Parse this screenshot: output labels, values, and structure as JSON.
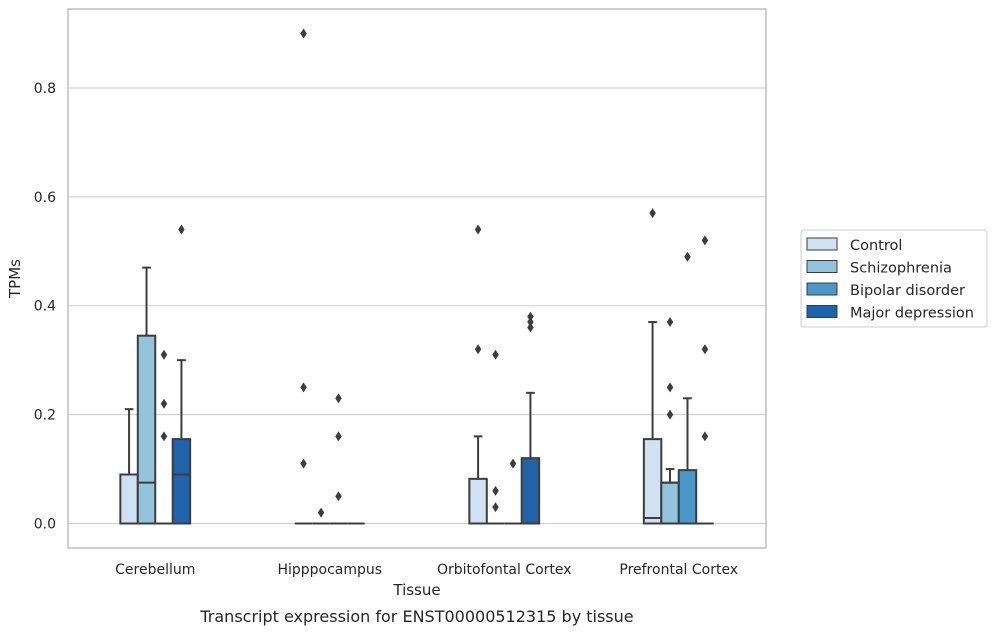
{
  "caption": "Transcript expression for ENST00000512315 by tissue",
  "colors": {
    "Control": "#cfe1f2",
    "Schizophrenia": "#93c4de",
    "Bipolar disorder": "#4a98c9",
    "Major depression": "#2163aa",
    "box_edge": "#3d3d3d",
    "grid": "#cccccc",
    "frame": "#bfbfbf"
  },
  "chart_data": {
    "type": "boxplot",
    "xlabel": "Tissue",
    "ylabel": "TPMs",
    "ylim": [
      -0.045,
      0.945
    ],
    "yticks": [
      0.0,
      0.2,
      0.4,
      0.6,
      0.8
    ],
    "ytick_labels": [
      "0.0",
      "0.2",
      "0.4",
      "0.6",
      "0.8"
    ],
    "grid": "horizontal",
    "legend_position": "right",
    "categories": [
      "Cerebellum",
      "Hipppocampus",
      "Orbitofontal Cortex",
      "Prefrontal Cortex"
    ],
    "series": [
      {
        "name": "Control",
        "boxes": [
          {
            "q1": 0.0,
            "median": 0.0,
            "q3": 0.09,
            "whisker_low": 0.0,
            "whisker_high": 0.21,
            "outliers": []
          },
          {
            "q1": 0.0,
            "median": 0.0,
            "q3": 0.0,
            "whisker_low": 0.0,
            "whisker_high": 0.0,
            "outliers": [
              0.11,
              0.25,
              0.9
            ]
          },
          {
            "q1": 0.0,
            "median": 0.0,
            "q3": 0.082,
            "whisker_low": 0.0,
            "whisker_high": 0.16,
            "outliers": [
              0.32,
              0.54
            ]
          },
          {
            "q1": 0.0,
            "median": 0.01,
            "q3": 0.155,
            "whisker_low": 0.0,
            "whisker_high": 0.37,
            "outliers": [
              0.57
            ]
          }
        ]
      },
      {
        "name": "Schizophrenia",
        "boxes": [
          {
            "q1": 0.0,
            "median": 0.075,
            "q3": 0.345,
            "whisker_low": 0.0,
            "whisker_high": 0.47,
            "outliers": []
          },
          {
            "q1": 0.0,
            "median": 0.0,
            "q3": 0.0,
            "whisker_low": 0.0,
            "whisker_high": 0.0,
            "outliers": [
              0.02
            ]
          },
          {
            "q1": 0.0,
            "median": 0.0,
            "q3": 0.0,
            "whisker_low": 0.0,
            "whisker_high": 0.0,
            "outliers": [
              0.03,
              0.06,
              0.31
            ]
          },
          {
            "q1": 0.0,
            "median": 0.075,
            "q3": 0.075,
            "whisker_low": 0.0,
            "whisker_high": 0.1,
            "outliers": [
              0.2,
              0.25,
              0.37
            ]
          }
        ]
      },
      {
        "name": "Bipolar disorder",
        "boxes": [
          {
            "q1": 0.0,
            "median": 0.0,
            "q3": 0.0,
            "whisker_low": 0.0,
            "whisker_high": 0.0,
            "outliers": [
              0.16,
              0.22,
              0.31
            ]
          },
          {
            "q1": 0.0,
            "median": 0.0,
            "q3": 0.0,
            "whisker_low": 0.0,
            "whisker_high": 0.0,
            "outliers": [
              0.05,
              0.16,
              0.23
            ]
          },
          {
            "q1": 0.0,
            "median": 0.0,
            "q3": 0.0,
            "whisker_low": 0.0,
            "whisker_high": 0.0,
            "outliers": [
              0.11
            ]
          },
          {
            "q1": 0.0,
            "median": 0.0,
            "q3": 0.098,
            "whisker_low": 0.0,
            "whisker_high": 0.23,
            "outliers": [
              0.49
            ]
          }
        ]
      },
      {
        "name": "Major depression",
        "boxes": [
          {
            "q1": 0.0,
            "median": 0.09,
            "q3": 0.155,
            "whisker_low": 0.0,
            "whisker_high": 0.3,
            "outliers": [
              0.54
            ]
          },
          {
            "q1": 0.0,
            "median": 0.0,
            "q3": 0.0,
            "whisker_low": 0.0,
            "whisker_high": 0.0,
            "outliers": []
          },
          {
            "q1": 0.0,
            "median": 0.0,
            "q3": 0.12,
            "whisker_low": 0.0,
            "whisker_high": 0.24,
            "outliers": [
              0.36,
              0.37,
              0.38
            ]
          },
          {
            "q1": 0.0,
            "median": 0.0,
            "q3": 0.0,
            "whisker_low": 0.0,
            "whisker_high": 0.0,
            "outliers": [
              0.16,
              0.32,
              0.52
            ]
          }
        ]
      }
    ]
  }
}
